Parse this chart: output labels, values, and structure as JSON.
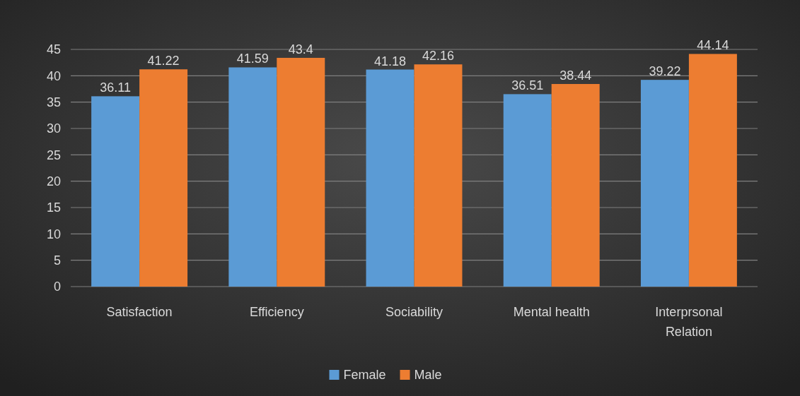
{
  "chart_data": {
    "type": "bar",
    "categories": [
      "Satisfaction",
      "Efficiency",
      "Sociability",
      "Mental health",
      "Interprsonal Relation"
    ],
    "series": [
      {
        "name": "Female",
        "color": "#5b9bd5",
        "values": [
          36.11,
          41.59,
          41.18,
          36.51,
          39.22
        ]
      },
      {
        "name": "Male",
        "color": "#ed7d31",
        "values": [
          41.22,
          43.4,
          42.16,
          38.44,
          44.14
        ]
      }
    ],
    "ylim": [
      0,
      45
    ],
    "yticks": [
      0,
      5,
      10,
      15,
      20,
      25,
      30,
      35,
      40,
      45
    ],
    "grid": "y",
    "legend": "bottom",
    "data_labels": true
  }
}
